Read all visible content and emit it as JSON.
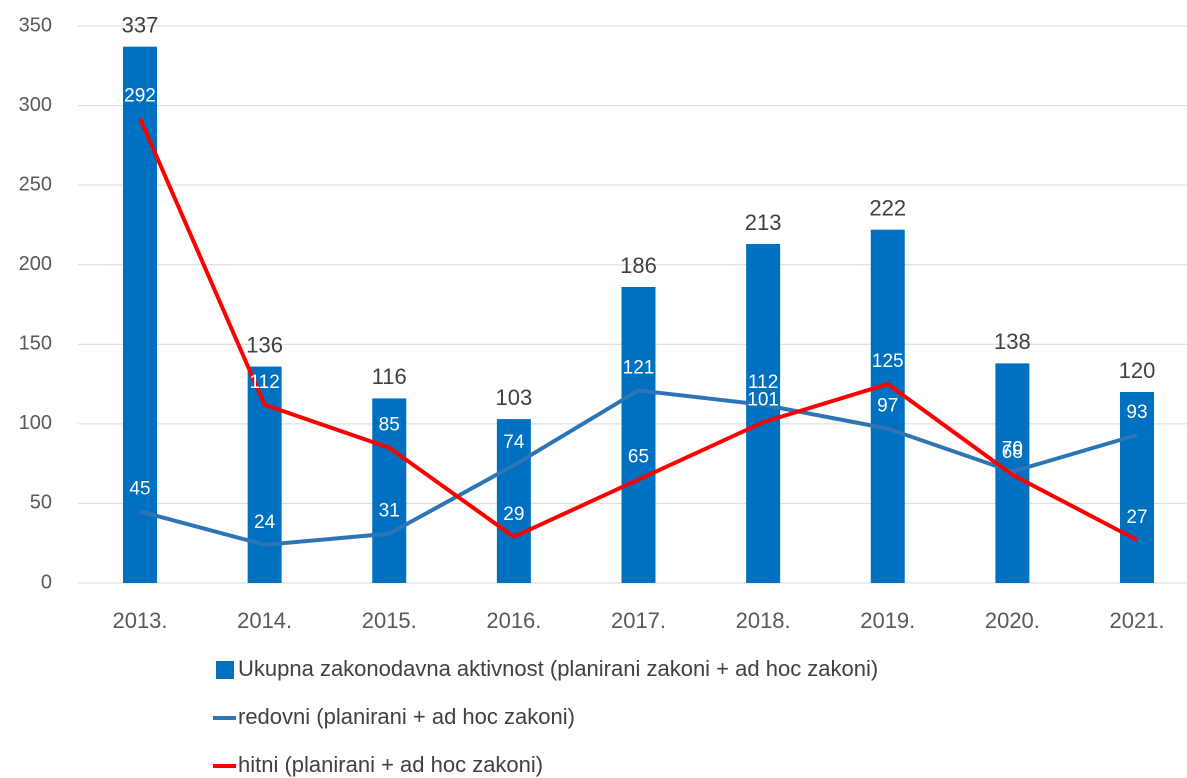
{
  "chart_data": {
    "type": "bar_line",
    "categories": [
      "2013.",
      "2014.",
      "2015.",
      "2016.",
      "2017.",
      "2018.",
      "2019.",
      "2020.",
      "2021."
    ],
    "series": [
      {
        "name": "Ukupna zakonodavna aktivnost (planirani zakoni + ad hoc zakoni)",
        "type": "bar",
        "color": "#0070c0",
        "values": [
          337,
          136,
          116,
          103,
          186,
          213,
          222,
          138,
          120
        ]
      },
      {
        "name": "redovni (planirani + ad hoc zakoni)",
        "type": "line",
        "color": "#2e75b6",
        "values": [
          45,
          24,
          31,
          74,
          121,
          112,
          97,
          70,
          93
        ]
      },
      {
        "name": "hitni (planirani + ad hoc zakoni)",
        "type": "line",
        "color": "#ff0000",
        "values": [
          292,
          112,
          85,
          29,
          65,
          101,
          125,
          68,
          27
        ]
      }
    ],
    "ylim": [
      0,
      350
    ],
    "yticks": [
      0,
      50,
      100,
      150,
      200,
      250,
      300,
      350
    ],
    "grid": true,
    "legend": "bottom"
  }
}
